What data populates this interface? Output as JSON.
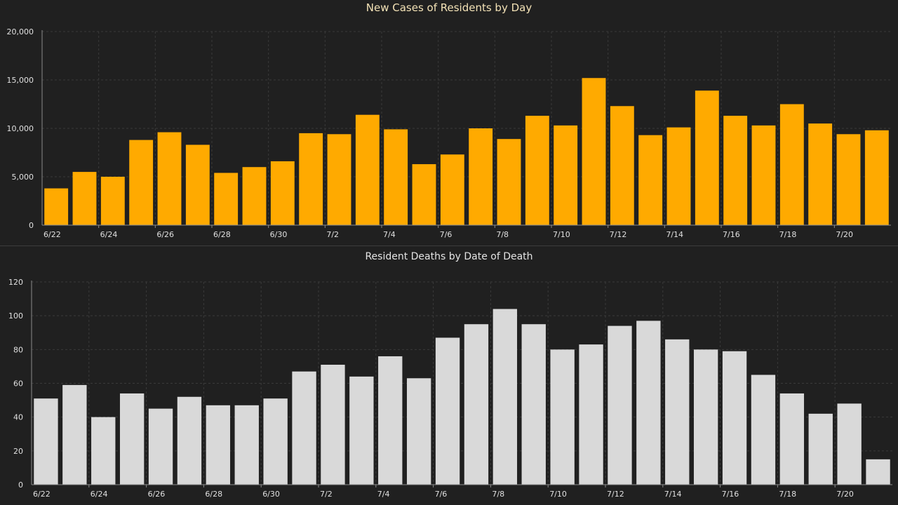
{
  "chart_data": [
    {
      "type": "bar",
      "title": "New Cases of Residents by Day",
      "xlabel": "",
      "ylabel": "",
      "ylim": [
        0,
        20000
      ],
      "yticks": [
        "0",
        "5,000",
        "10,000",
        "15,000",
        "20,000"
      ],
      "ytick_values": [
        0,
        5000,
        10000,
        15000,
        20000
      ],
      "grid": true,
      "bar_color": "#ffaa00",
      "categories": [
        "6/22",
        "6/23",
        "6/24",
        "6/25",
        "6/26",
        "6/27",
        "6/28",
        "6/29",
        "6/30",
        "7/1",
        "7/2",
        "7/3",
        "7/4",
        "7/5",
        "7/6",
        "7/7",
        "7/8",
        "7/9",
        "7/10",
        "7/11",
        "7/12",
        "7/13",
        "7/14",
        "7/15",
        "7/16",
        "7/17",
        "7/18",
        "7/19",
        "7/20",
        "7/21"
      ],
      "xtick_labels": [
        "6/22",
        "6/24",
        "6/26",
        "6/28",
        "6/30",
        "7/2",
        "7/4",
        "7/6",
        "7/8",
        "7/10",
        "7/12",
        "7/14",
        "7/16",
        "7/18",
        "7/20"
      ],
      "values": [
        3800,
        5500,
        5000,
        8800,
        9600,
        8300,
        5400,
        6000,
        6600,
        9500,
        9400,
        11400,
        9900,
        6300,
        7300,
        10000,
        8900,
        11300,
        10300,
        15200,
        12300,
        9300,
        10100,
        13900,
        11300,
        10300,
        12500,
        10500,
        9400,
        9800
      ]
    },
    {
      "type": "bar",
      "title": "Resident Deaths by Date of Death",
      "xlabel": "",
      "ylabel": "",
      "ylim": [
        0,
        120
      ],
      "yticks": [
        "0",
        "20",
        "40",
        "60",
        "80",
        "100",
        "120"
      ],
      "ytick_values": [
        0,
        20,
        40,
        60,
        80,
        100,
        120
      ],
      "grid": true,
      "bar_color": "#d9d9d9",
      "categories": [
        "6/22",
        "6/23",
        "6/24",
        "6/25",
        "6/26",
        "6/27",
        "6/28",
        "6/29",
        "6/30",
        "7/1",
        "7/2",
        "7/3",
        "7/4",
        "7/5",
        "7/6",
        "7/7",
        "7/8",
        "7/9",
        "7/10",
        "7/11",
        "7/12",
        "7/13",
        "7/14",
        "7/15",
        "7/16",
        "7/17",
        "7/18",
        "7/19",
        "7/20",
        "7/21"
      ],
      "xtick_labels": [
        "6/22",
        "6/24",
        "6/26",
        "6/28",
        "6/30",
        "7/2",
        "7/4",
        "7/6",
        "7/8",
        "7/10",
        "7/12",
        "7/14",
        "7/16",
        "7/18",
        "7/20"
      ],
      "values": [
        51,
        59,
        40,
        54,
        45,
        52,
        47,
        47,
        51,
        67,
        71,
        64,
        76,
        63,
        87,
        95,
        104,
        95,
        80,
        83,
        94,
        97,
        86,
        80,
        79,
        65,
        54,
        42,
        48,
        15
      ]
    }
  ],
  "colors": {
    "background": "#202020",
    "grid": "#3a3a3a",
    "axis": "#8a8a8a",
    "tick_text": "#e0e0e0",
    "cases_title": "#f3e2b6",
    "deaths_title": "#e4e4e4"
  }
}
